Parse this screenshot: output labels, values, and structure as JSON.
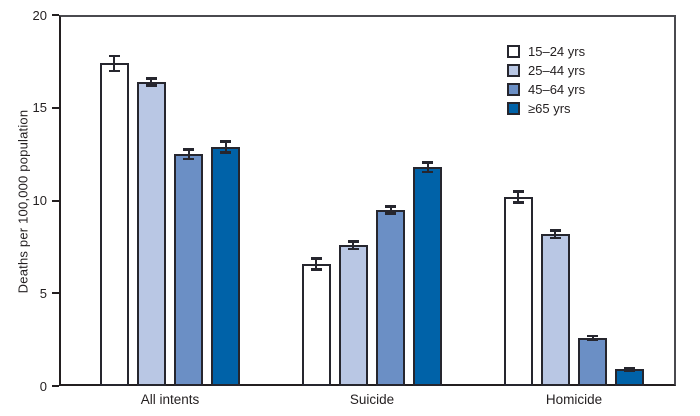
{
  "chart_data": {
    "type": "bar",
    "title": "",
    "ylabel": "Deaths per 100,000 population",
    "xlabel": "",
    "categories": [
      "All intents",
      "Suicide",
      "Homicide"
    ],
    "series": [
      {
        "name": "15–24 yrs",
        "color": "#ffffff",
        "values": [
          17.4,
          6.6,
          10.2
        ],
        "errors": [
          0.4,
          0.3,
          0.3
        ]
      },
      {
        "name": "25–44 yrs",
        "color": "#b9c7e4",
        "values": [
          16.4,
          7.6,
          8.2
        ],
        "errors": [
          0.2,
          0.2,
          0.2
        ]
      },
      {
        "name": "45–64 yrs",
        "color": "#6b8fc5",
        "values": [
          12.5,
          9.5,
          2.6
        ],
        "errors": [
          0.25,
          0.2,
          0.1
        ]
      },
      {
        "name": "≥65 yrs",
        "color": "#0062a8",
        "values": [
          12.9,
          11.8,
          0.9
        ],
        "errors": [
          0.3,
          0.25,
          0.08
        ]
      }
    ],
    "ylim": [
      0,
      20
    ],
    "yticks": [
      0,
      5,
      10,
      15,
      20
    ],
    "grid": false,
    "legend_position": "top-right",
    "error_bars": true,
    "bar_outline_color": "#26262e",
    "axis_color": "#231f20"
  }
}
